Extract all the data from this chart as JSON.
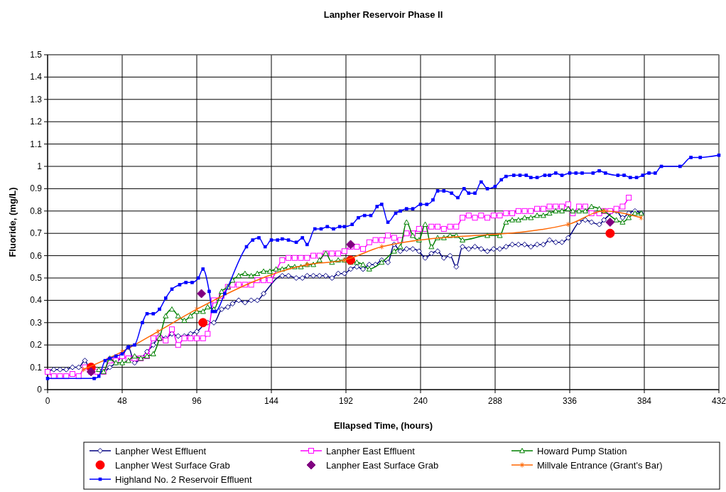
{
  "chart_data": {
    "type": "line",
    "title": "Lanpher Reservoir Phase II",
    "xlabel": "Ellapsed Time, (hours)",
    "ylabel": "Fluoride, (mg/L)",
    "xlim": [
      0,
      432
    ],
    "xticks": [
      0,
      48,
      96,
      144,
      192,
      240,
      288,
      336,
      384,
      432
    ],
    "ylim": [
      0,
      1.5
    ],
    "yticks": [
      0,
      0.1,
      0.2,
      0.3,
      0.4,
      0.5,
      0.6,
      0.7,
      0.8,
      0.9,
      1,
      1.1,
      1.2,
      1.3,
      1.4,
      1.5
    ],
    "grid": true,
    "legend": "bottom",
    "series": [
      {
        "name": "Lanpher West Effluent",
        "color": "#000080",
        "marker": "diamond",
        "x": [
          0,
          4,
          8,
          12,
          16,
          20,
          24,
          28,
          32,
          36,
          40,
          44,
          48,
          52,
          56,
          60,
          64,
          68,
          72,
          76,
          80,
          84,
          88,
          92,
          96,
          103,
          107,
          112,
          116,
          119,
          123,
          127,
          131,
          135,
          139,
          151,
          155,
          160,
          164,
          167,
          171,
          175,
          179,
          183,
          187,
          191,
          195,
          199,
          203,
          207,
          211,
          215,
          219,
          223,
          227,
          231,
          235,
          239,
          243,
          247,
          251,
          255,
          259,
          263,
          267,
          271,
          275,
          279,
          283,
          287,
          291,
          295,
          299,
          303,
          307,
          311,
          315,
          319,
          323,
          327,
          331,
          335,
          342,
          346,
          350,
          355,
          358,
          366,
          370,
          374,
          378,
          382
        ],
        "values": [
          0.08,
          0.09,
          0.09,
          0.09,
          0.1,
          0.1,
          0.13,
          0.08,
          0.08,
          0.08,
          0.1,
          0.12,
          0.15,
          0.19,
          0.12,
          0.14,
          0.17,
          0.2,
          0.24,
          0.23,
          0.25,
          0.24,
          0.24,
          0.25,
          0.26,
          0.3,
          0.3,
          0.36,
          0.37,
          0.385,
          0.4,
          0.39,
          0.4,
          0.4,
          0.43,
          0.51,
          0.51,
          0.5,
          0.5,
          0.51,
          0.51,
          0.51,
          0.51,
          0.5,
          0.52,
          0.52,
          0.54,
          0.55,
          0.54,
          0.56,
          0.56,
          0.58,
          0.57,
          0.65,
          0.62,
          0.63,
          0.63,
          0.62,
          0.59,
          0.61,
          0.62,
          0.59,
          0.6,
          0.55,
          0.64,
          0.63,
          0.64,
          0.63,
          0.62,
          0.63,
          0.63,
          0.64,
          0.65,
          0.65,
          0.65,
          0.64,
          0.65,
          0.65,
          0.67,
          0.66,
          0.66,
          0.68,
          0.75,
          0.76,
          0.75,
          0.74,
          0.76,
          0.8,
          0.77,
          0.79,
          0.8,
          0.79
        ]
      },
      {
        "name": "Lanpher East Effluent",
        "color": "#ff00ff",
        "marker": "square",
        "x": [
          0,
          4,
          8,
          12,
          16,
          20,
          24,
          28,
          32,
          36,
          40,
          44,
          48,
          52,
          56,
          60,
          64,
          68,
          72,
          76,
          80,
          84,
          88,
          92,
          96,
          100,
          103,
          107,
          112,
          116,
          119,
          123,
          127,
          131,
          135,
          139,
          143,
          151,
          155,
          159,
          163,
          167,
          171,
          175,
          179,
          183,
          187,
          191,
          195,
          199,
          203,
          207,
          211,
          215,
          219,
          223,
          227,
          231,
          235,
          239,
          243,
          247,
          251,
          255,
          259,
          263,
          267,
          271,
          275,
          279,
          283,
          287,
          291,
          295,
          299,
          303,
          307,
          311,
          315,
          319,
          323,
          327,
          331,
          335,
          338,
          342,
          346,
          350,
          355,
          358,
          362,
          366,
          370,
          374
        ],
        "values": [
          0.08,
          0.06,
          0.06,
          0.06,
          0.07,
          0.06,
          0.1,
          0.08,
          0.08,
          0.08,
          0.13,
          0.13,
          0.15,
          0.14,
          0.14,
          0.14,
          0.15,
          0.23,
          0.23,
          0.22,
          0.27,
          0.2,
          0.23,
          0.23,
          0.23,
          0.23,
          0.25,
          0.4,
          0.42,
          0.46,
          0.47,
          0.47,
          0.47,
          0.47,
          0.49,
          0.49,
          0.49,
          0.58,
          0.59,
          0.59,
          0.59,
          0.59,
          0.6,
          0.6,
          0.61,
          0.61,
          0.61,
          0.62,
          0.64,
          0.64,
          0.63,
          0.66,
          0.67,
          0.67,
          0.69,
          0.68,
          0.67,
          0.7,
          0.7,
          0.72,
          0.72,
          0.73,
          0.73,
          0.72,
          0.73,
          0.73,
          0.77,
          0.78,
          0.77,
          0.78,
          0.77,
          0.78,
          0.78,
          0.79,
          0.79,
          0.8,
          0.8,
          0.8,
          0.81,
          0.81,
          0.82,
          0.82,
          0.82,
          0.83,
          0.79,
          0.82,
          0.82,
          0.79,
          0.79,
          0.8,
          0.8,
          0.81,
          0.82,
          0.86
        ]
      },
      {
        "name": "Howard Pump Station",
        "color": "#008000",
        "marker": "triangle",
        "x": [
          33,
          36,
          40,
          44,
          48,
          52,
          56,
          60,
          64,
          68,
          72,
          76,
          80,
          84,
          88,
          92,
          96,
          100,
          103,
          107,
          112,
          116,
          119,
          123,
          127,
          131,
          135,
          139,
          143,
          147,
          151,
          155,
          159,
          163,
          167,
          171,
          175,
          179,
          183,
          187,
          191,
          195,
          199,
          203,
          207,
          215,
          223,
          227,
          231,
          235,
          239,
          243,
          247,
          251,
          255,
          259,
          263,
          267,
          283,
          291,
          295,
          299,
          303,
          307,
          311,
          315,
          319,
          323,
          327,
          331,
          335,
          338,
          342,
          346,
          350,
          355,
          358,
          366,
          370,
          374,
          378,
          382
        ],
        "values": [
          0.09,
          0.08,
          0.14,
          0.12,
          0.12,
          0.13,
          0.15,
          0.14,
          0.15,
          0.16,
          0.23,
          0.33,
          0.36,
          0.33,
          0.31,
          0.33,
          0.35,
          0.35,
          0.37,
          0.36,
          0.44,
          0.46,
          0.49,
          0.51,
          0.52,
          0.51,
          0.52,
          0.53,
          0.53,
          0.54,
          0.54,
          0.55,
          0.55,
          0.55,
          0.56,
          0.56,
          0.58,
          0.61,
          0.57,
          0.58,
          0.58,
          0.57,
          0.57,
          0.56,
          0.54,
          0.57,
          0.62,
          0.64,
          0.75,
          0.69,
          0.67,
          0.74,
          0.64,
          0.68,
          0.68,
          0.69,
          0.69,
          0.67,
          0.69,
          0.69,
          0.75,
          0.76,
          0.76,
          0.77,
          0.77,
          0.78,
          0.78,
          0.79,
          0.8,
          0.8,
          0.81,
          0.8,
          0.8,
          0.8,
          0.82,
          0.81,
          0.8,
          0.76,
          0.75,
          0.77,
          0.79,
          0.79
        ]
      },
      {
        "name": "Lanpher West Surface Grab",
        "type": "scatter",
        "color": "#ff0000",
        "marker": "circle",
        "x": [
          28,
          100,
          195,
          362
        ],
        "values": [
          0.1,
          0.3,
          0.58,
          0.7
        ]
      },
      {
        "name": "Lanpher East Surface Grab",
        "type": "scatter",
        "color": "#800080",
        "marker": "diamond",
        "x": [
          28,
          99,
          195,
          362
        ],
        "values": [
          0.08,
          0.43,
          0.65,
          0.75
        ]
      },
      {
        "name": "Millvale Entrance (Grant's Bar)",
        "color": "#ff6600",
        "marker": "cross",
        "x": [
          23,
          48,
          71,
          96,
          167,
          191,
          215,
          335,
          358,
          382
        ],
        "values": [
          0.09,
          0.17,
          0.26,
          0.36,
          0.56,
          0.58,
          0.64,
          0.74,
          0.8,
          0.77
        ]
      },
      {
        "name": "Highland No. 2 Reservoir Effluent",
        "color": "#0000ff",
        "marker": "square",
        "x": [
          0,
          30,
          33,
          37,
          40,
          44,
          48,
          52,
          56,
          61,
          64,
          68,
          72,
          76,
          80,
          85,
          89,
          93,
          97,
          100,
          104,
          106,
          108,
          114,
          128,
          132,
          136,
          140,
          144,
          148,
          151,
          155,
          160,
          164,
          167,
          172,
          176,
          180,
          184,
          188,
          191,
          196,
          200,
          204,
          208,
          212,
          215,
          219,
          224,
          227,
          231,
          235,
          240,
          244,
          248,
          251,
          255,
          260,
          264,
          268,
          271,
          275,
          279,
          283,
          288,
          292,
          295,
          300,
          304,
          308,
          311,
          315,
          320,
          323,
          327,
          331,
          336,
          340,
          344,
          351,
          355,
          359,
          367,
          371,
          375,
          379,
          383,
          387,
          391,
          395,
          407,
          414,
          420,
          432
        ],
        "values": [
          0.05,
          0.05,
          0.06,
          0.13,
          0.14,
          0.15,
          0.16,
          0.19,
          0.2,
          0.3,
          0.34,
          0.34,
          0.36,
          0.41,
          0.45,
          0.47,
          0.48,
          0.48,
          0.5,
          0.54,
          0.44,
          0.35,
          0.35,
          0.43,
          0.64,
          0.67,
          0.68,
          0.64,
          0.67,
          0.67,
          0.675,
          0.67,
          0.66,
          0.68,
          0.65,
          0.72,
          0.72,
          0.73,
          0.72,
          0.73,
          0.73,
          0.74,
          0.77,
          0.78,
          0.78,
          0.82,
          0.83,
          0.75,
          0.79,
          0.8,
          0.81,
          0.81,
          0.83,
          0.83,
          0.85,
          0.89,
          0.89,
          0.88,
          0.86,
          0.9,
          0.88,
          0.88,
          0.93,
          0.9,
          0.91,
          0.94,
          0.955,
          0.96,
          0.96,
          0.96,
          0.95,
          0.95,
          0.96,
          0.96,
          0.97,
          0.96,
          0.97,
          0.97,
          0.97,
          0.97,
          0.98,
          0.97,
          0.96,
          0.96,
          0.95,
          0.95,
          0.96,
          0.97,
          0.97,
          1.0,
          1.0,
          1.04,
          1.04,
          1.05
        ]
      }
    ]
  }
}
